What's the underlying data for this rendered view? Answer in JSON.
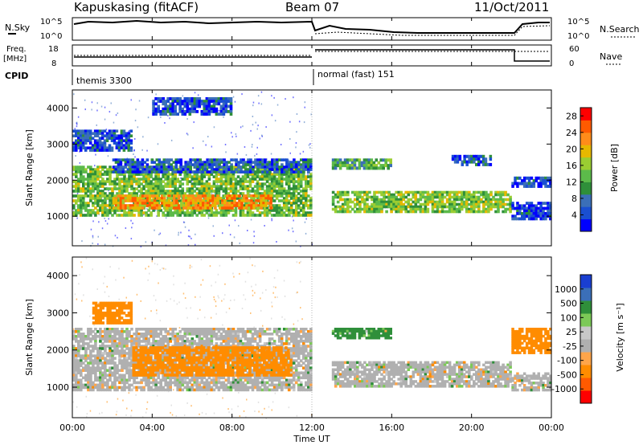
{
  "header": {
    "station": "Kapuskasing (fitACF)",
    "beam": "Beam 07",
    "date": "11/Oct/2011"
  },
  "top_panels": {
    "nsky_label": "N.Sky",
    "nsearch_label": "N.Search",
    "nsky_ticks": [
      "10^5",
      "10^0"
    ],
    "nsearch_ticks": [
      "10^5",
      "10^0"
    ],
    "freq_label_1": "Freq.",
    "freq_label_2": "[MHz]",
    "freq_ticks": [
      "18",
      "8"
    ],
    "nave_label": "Nave",
    "nave_ticks": [
      "60",
      "0"
    ],
    "cpid_label": "CPID",
    "cpid_segments": [
      {
        "label": "themis 3300",
        "start_h": 0,
        "end_h": 12
      },
      {
        "label": "normal (fast) 151",
        "start_h": 12,
        "end_h": 24
      }
    ]
  },
  "colors": {
    "power": [
      "#0000ff",
      "#1a4fd1",
      "#3b6fb8",
      "#2f8f3a",
      "#5cba4a",
      "#9acd32",
      "#e6b800",
      "#ff8c1a",
      "#ff5a00",
      "#ff0000"
    ],
    "velocity": [
      "#ff0000",
      "#ff5a00",
      "#ff8c00",
      "#ffa54a",
      "#b0b0b0",
      "#c8c8c8",
      "#7cc957",
      "#2f8f3a",
      "#3b6fb8",
      "#1a3fd1"
    ]
  },
  "chart_data": [
    {
      "type": "heatmap",
      "title": "",
      "xlabel": "",
      "ylabel": "Slant Range [km]",
      "xlim": [
        0,
        24
      ],
      "ylim": [
        180,
        4500
      ],
      "xticks": [
        "00:00",
        "04:00",
        "08:00",
        "12:00",
        "16:00",
        "20:00",
        "00:00"
      ],
      "yticks": [
        "1000",
        "2000",
        "3000",
        "4000"
      ],
      "colorbar_label": "Power [dB]",
      "colorbar_ticks": [
        "4",
        "8",
        "12",
        "16",
        "20",
        "24",
        "28"
      ],
      "colorbar_range": [
        0,
        30
      ],
      "bands": [
        {
          "x": [
            0,
            12
          ],
          "ylow": 1000,
          "yhigh": 2400,
          "value": 14
        },
        {
          "x": [
            2,
            10
          ],
          "ylow": 1200,
          "yhigh": 1600,
          "value": 22
        },
        {
          "x": [
            2,
            12
          ],
          "ylow": 2200,
          "yhigh": 2600,
          "value": 6
        },
        {
          "x": [
            0,
            3
          ],
          "ylow": 2800,
          "yhigh": 3400,
          "value": 5
        },
        {
          "x": [
            4,
            8
          ],
          "ylow": 3800,
          "yhigh": 4300,
          "value": 5
        },
        {
          "x": [
            13,
            22
          ],
          "ylow": 1100,
          "yhigh": 1700,
          "value": 15
        },
        {
          "x": [
            13,
            16
          ],
          "ylow": 2300,
          "yhigh": 2600,
          "value": 12
        },
        {
          "x": [
            19,
            21
          ],
          "ylow": 2400,
          "yhigh": 2700,
          "value": 6
        },
        {
          "x": [
            22,
            24
          ],
          "ylow": 900,
          "yhigh": 1400,
          "value": 5
        },
        {
          "x": [
            22,
            24
          ],
          "ylow": 1800,
          "yhigh": 2100,
          "value": 5
        }
      ]
    },
    {
      "type": "heatmap",
      "title": "",
      "xlabel": "Time UT",
      "ylabel": "Slant Range [km]",
      "xlim": [
        0,
        24
      ],
      "ylim": [
        180,
        4500
      ],
      "xticks": [
        "00:00",
        "04:00",
        "08:00",
        "12:00",
        "16:00",
        "20:00",
        "00:00"
      ],
      "yticks": [
        "1000",
        "2000",
        "3000",
        "4000"
      ],
      "colorbar_label": "Velocity [m s⁻¹]",
      "colorbar_ticks": [
        "1000",
        "500",
        "100",
        "25",
        "-25",
        "-100",
        "-500",
        "-1000"
      ],
      "bands": [
        {
          "x": [
            0,
            12
          ],
          "ylow": 900,
          "yhigh": 2600,
          "value": 0
        },
        {
          "x": [
            3,
            11
          ],
          "ylow": 1300,
          "yhigh": 2100,
          "value": -300
        },
        {
          "x": [
            1,
            3
          ],
          "ylow": 2700,
          "yhigh": 3300,
          "value": -300
        },
        {
          "x": [
            13,
            22
          ],
          "ylow": 1000,
          "yhigh": 1700,
          "value": 0
        },
        {
          "x": [
            13,
            16
          ],
          "ylow": 2300,
          "yhigh": 2600,
          "value": 120
        },
        {
          "x": [
            22,
            24
          ],
          "ylow": 900,
          "yhigh": 1400,
          "value": 0
        },
        {
          "x": [
            22,
            24
          ],
          "ylow": 1900,
          "yhigh": 2600,
          "value": -300
        }
      ]
    }
  ]
}
